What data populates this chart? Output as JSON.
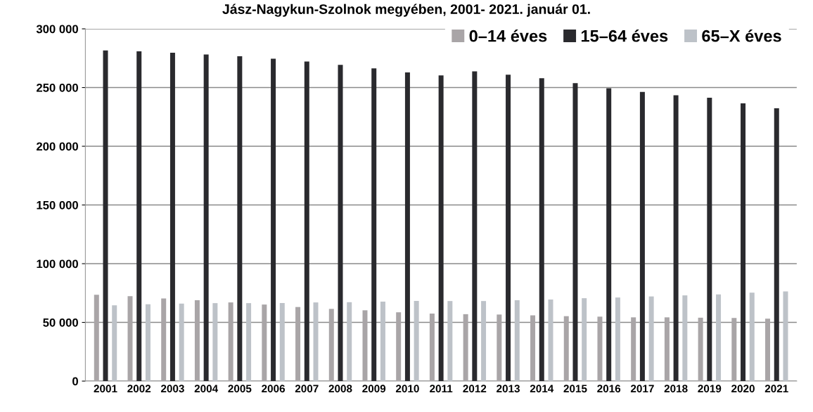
{
  "chart_data": {
    "type": "bar",
    "title": "Jász-Nagykun-Szolnok megyében, 2001- 2021. január 01.",
    "categories": [
      "2001",
      "2002",
      "2003",
      "2004",
      "2005",
      "2006",
      "2007",
      "2008",
      "2009",
      "2010",
      "2011",
      "2012",
      "2013",
      "2014",
      "2015",
      "2016",
      "2017",
      "2018",
      "2019",
      "2020",
      "2021"
    ],
    "series": [
      {
        "name": "0–14 éves",
        "color": "#a9a5a7",
        "values": [
          73500,
          72400,
          70400,
          68900,
          67000,
          65200,
          63100,
          61500,
          60300,
          58600,
          57500,
          57000,
          56700,
          56000,
          55300,
          54900,
          54300,
          54300,
          54000,
          53700,
          53200
        ]
      },
      {
        "name": "15–64 éves",
        "color": "#2a2a2e",
        "values": [
          281600,
          280900,
          279600,
          278100,
          276600,
          274600,
          272200,
          269400,
          266300,
          262900,
          260400,
          263800,
          261000,
          258000,
          253700,
          249400,
          246300,
          243500,
          241300,
          236600,
          232400
        ]
      },
      {
        "name": "65–X éves",
        "color": "#bdc2c8",
        "values": [
          64600,
          65400,
          66000,
          66400,
          66400,
          66500,
          67000,
          67200,
          67700,
          68300,
          68200,
          68200,
          68900,
          69500,
          70600,
          71200,
          72100,
          73000,
          73800,
          75300,
          76400
        ]
      }
    ],
    "ylim": [
      0,
      300000
    ],
    "yticks": [
      {
        "value": 0,
        "label": "0"
      },
      {
        "value": 50000,
        "label": "50 000"
      },
      {
        "value": 100000,
        "label": "100 000"
      },
      {
        "value": 150000,
        "label": "150 000"
      },
      {
        "value": 200000,
        "label": "200 000"
      },
      {
        "value": 250000,
        "label": "250 000"
      },
      {
        "value": 300000,
        "label": "300 000"
      }
    ],
    "grid": "y",
    "legend": "top right"
  }
}
